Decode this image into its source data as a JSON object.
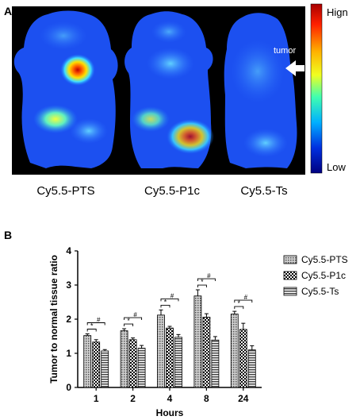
{
  "figure": {
    "panel_a": {
      "letter": "A",
      "labels": [
        "Cy5.5-PTS",
        "Cy5.5-P1c",
        "Cy5.5-Ts"
      ],
      "colorbar_high": "Hign",
      "colorbar_low": "Low",
      "annotation": "tumor"
    },
    "panel_b": {
      "letter": "B"
    }
  },
  "chart_data": {
    "type": "bar",
    "xlabel": "Hours",
    "ylabel": "Tumor to normal tissue ratio",
    "categories": [
      "1",
      "2",
      "4",
      "8",
      "24"
    ],
    "ylim": [
      0,
      4
    ],
    "yticks": [
      "0",
      "1",
      "2",
      "3",
      "4"
    ],
    "grid": false,
    "legend_position": "top-right",
    "series": [
      {
        "name": "Cy5.5-PTS",
        "values": [
          1.52,
          1.66,
          2.12,
          2.68,
          2.15
        ],
        "errors": [
          0.05,
          0.06,
          0.15,
          0.18,
          0.08
        ],
        "pattern": "dots",
        "color": "#888888"
      },
      {
        "name": "Cy5.5-P1c",
        "values": [
          1.33,
          1.4,
          1.74,
          2.06,
          1.7
        ],
        "errors": [
          0.07,
          0.05,
          0.05,
          0.1,
          0.18
        ],
        "pattern": "checker",
        "color": "#000000"
      },
      {
        "name": "Cy5.5-Ts",
        "values": [
          1.07,
          1.15,
          1.47,
          1.39,
          1.1
        ],
        "errors": [
          0.04,
          0.08,
          0.08,
          0.1,
          0.12
        ],
        "pattern": "hlines",
        "color": "#555555"
      }
    ],
    "annotations": [
      "*",
      "#"
    ]
  }
}
